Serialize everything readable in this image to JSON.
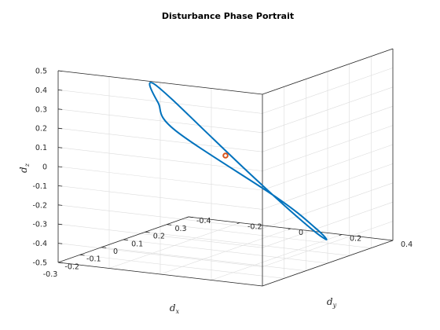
{
  "chart_data": {
    "type": "line",
    "projection": "3d",
    "title": "Disturbance Phase Portrait",
    "xlabel": "d",
    "xlabel_sub": "x",
    "ylabel": "d",
    "ylabel_sub": "y",
    "zlabel": "d",
    "zlabel_sub": "z",
    "xlim": [
      -0.3,
      0.3
    ],
    "ylim": [
      -0.4,
      0.4
    ],
    "zlim": [
      -0.5,
      0.5
    ],
    "x_ticks": [
      "-0.3",
      "-0.2",
      "-0.1",
      "0",
      "0.1",
      "0.2",
      "0.3"
    ],
    "y_ticks": [
      "-0.4",
      "-0.2",
      "0",
      "0.2",
      "0.4"
    ],
    "z_ticks": [
      "-0.5",
      "-0.4",
      "-0.3",
      "-0.2",
      "-0.1",
      "0",
      "0.1",
      "0.2",
      "0.3",
      "0.4",
      "0.5"
    ],
    "grid": true,
    "series": [
      {
        "kind": "closed-orbit",
        "color": "#0072bd",
        "x": [
          0.3,
          0.2598,
          0.15,
          0.0,
          -0.15,
          -0.2598,
          -0.3,
          -0.2598,
          -0.15,
          0.0,
          0.15,
          0.2598,
          0.3
        ],
        "y": [
          -0.05,
          0.1299,
          0.2683,
          0.3464,
          0.3531,
          0.2897,
          0.17,
          0.0134,
          -0.1521,
          -0.2964,
          -0.3915,
          -0.4169,
          -0.36
        ],
        "z": [
          -0.35,
          -0.4598,
          -0.4562,
          -0.34,
          -0.1402,
          0.0866,
          0.28,
          0.3964,
          0.4098,
          0.32,
          0.1562,
          -0.0366,
          -0.2036
        ]
      }
    ],
    "marker": {
      "x": 0.0,
      "y": 0.0,
      "z": 0.0,
      "shape": "circle",
      "color": "#d95319"
    }
  }
}
